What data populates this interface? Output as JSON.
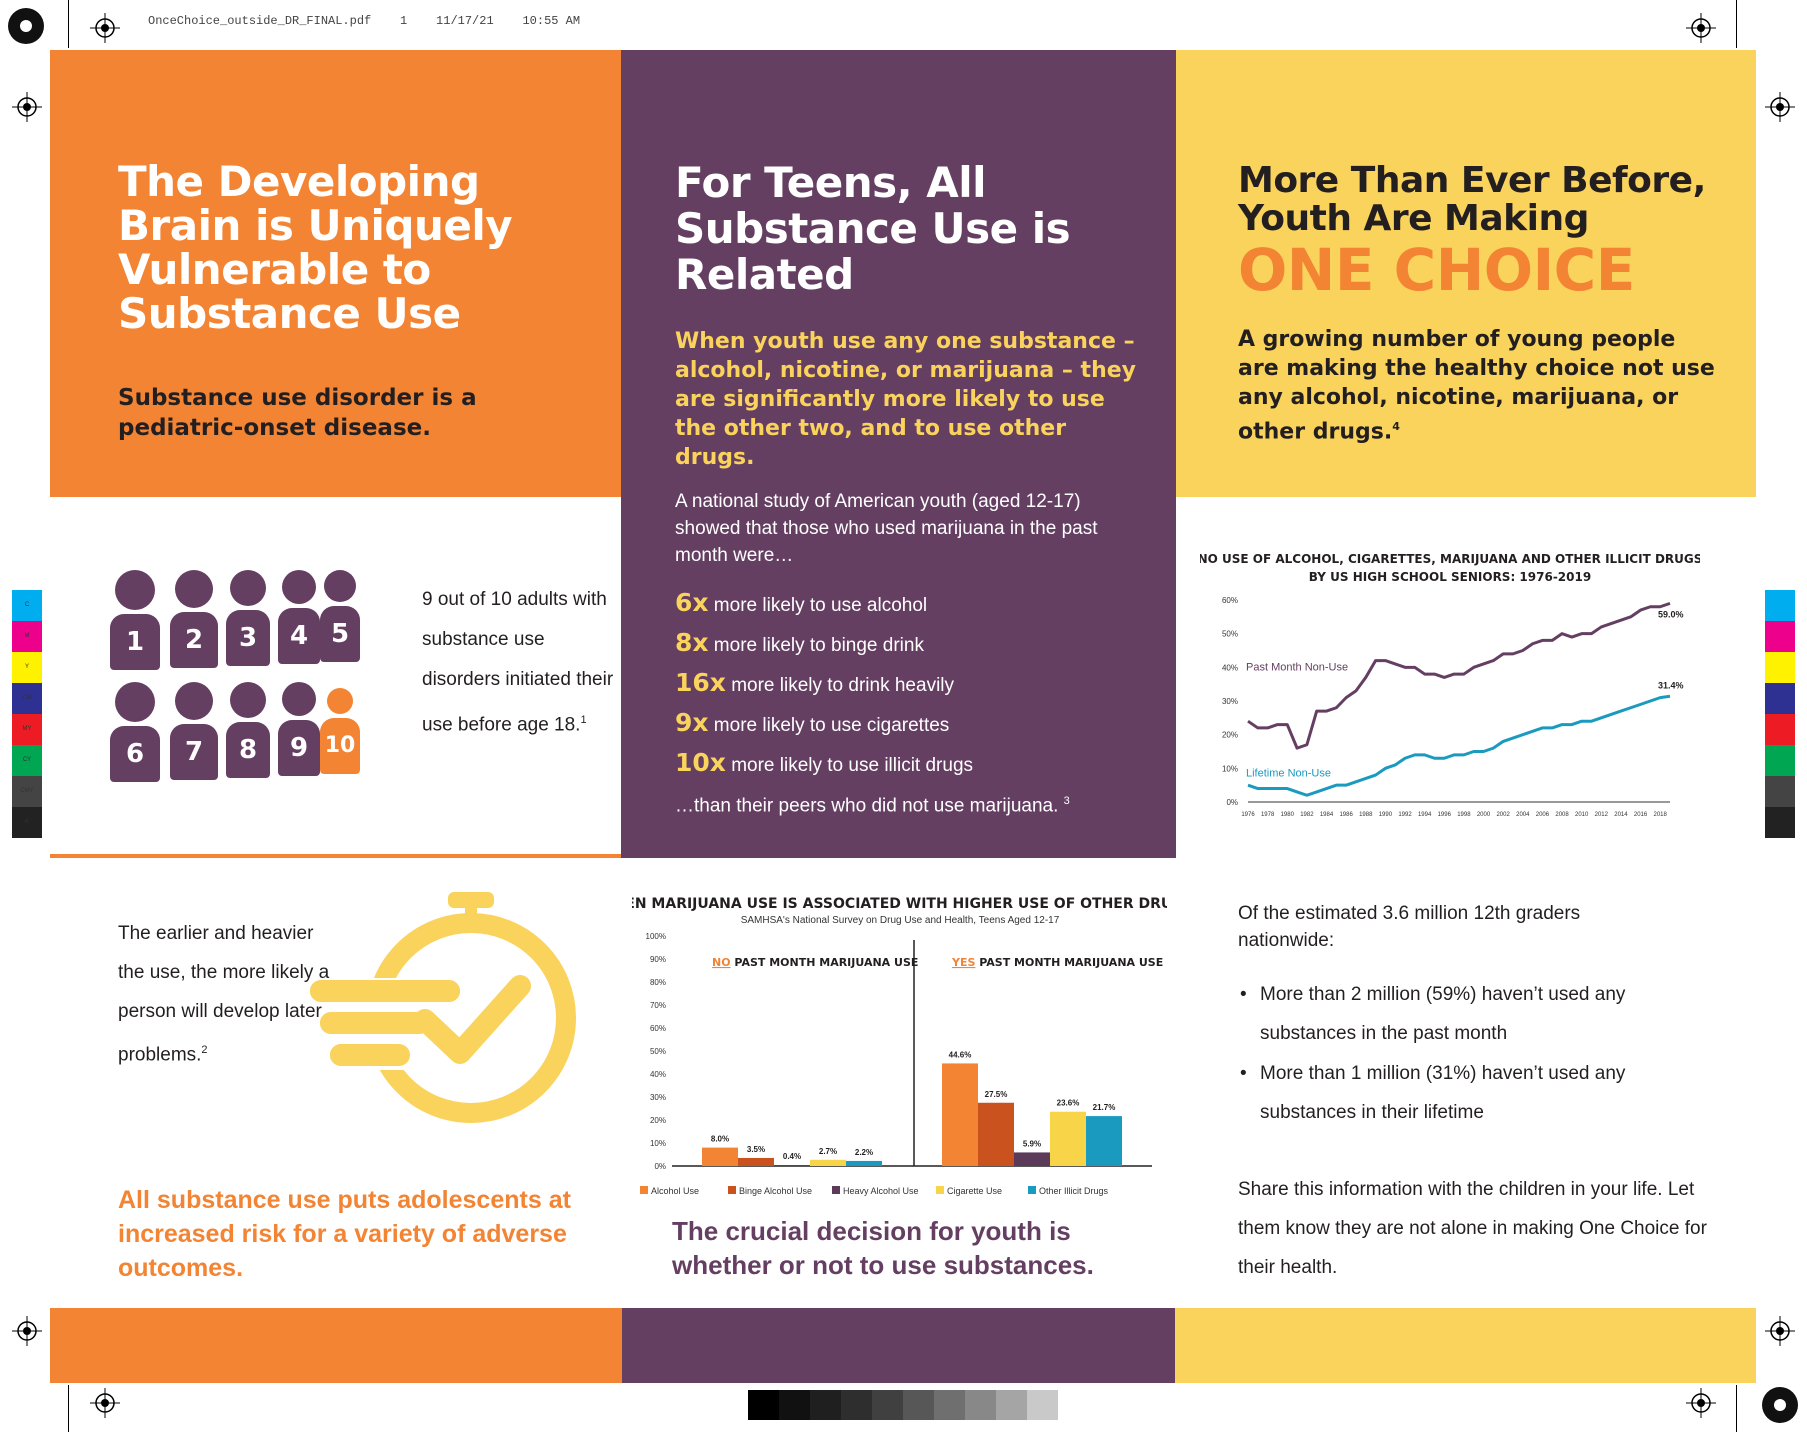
{
  "print_header": "OnceChoice_outside_DR_FINAL.pdf    1    11/17/21    10:55 AM",
  "left": {
    "title": "The Developing Brain is Uniquely Vulnerable to Substance Use",
    "subtitle": "Substance use disorder is a pediatric-onset disease.",
    "people_numbers": [
      "1",
      "2",
      "3",
      "4",
      "5",
      "6",
      "7",
      "8",
      "9",
      "10"
    ],
    "adults_text": "9 out of 10 adults with substance use disorders initiated their use before age 18.",
    "adults_sup": "1",
    "earlier_text": "The earlier and heavier the use, the more likely a person will develop later problems.",
    "earlier_sup": "2",
    "bottom_text": "All substance use puts adolescents at increased risk for a variety of adverse outcomes."
  },
  "middle": {
    "title": "For Teens, All Substance Use is Related",
    "highlight": "When youth use any one substance – alcohol, nicotine, or marijuana – they are significantly more likely to use the other two, and to use other drugs.",
    "study_intro": "A national study of American youth (aged 12-17) showed that those who used marijuana in the past month were…",
    "stats": [
      {
        "mult": "6x",
        "text": " more likely to use alcohol"
      },
      {
        "mult": "8x",
        "text": " more likely to binge drink"
      },
      {
        "mult": "16x",
        "text": " more likely to drink heavily"
      },
      {
        "mult": "9x",
        "text": " more likely to use cigarettes"
      },
      {
        "mult": "10x",
        "text": " more likely to use illicit drugs"
      }
    ],
    "stats_footer": "…than their peers who did not use marijuana.",
    "stats_footer_sup": "3",
    "bottom_text": "The crucial decision for youth is whether or not to use substances."
  },
  "right": {
    "title_line1": "More Than Ever Before, Youth Are Making",
    "title_line2": "ONE CHOICE",
    "subtitle": "A growing number of young people are making the healthy choice not use any alcohol, nicotine, marijuana, or other drugs.",
    "subtitle_sup": "4",
    "estimate": "Of the estimated 3.6 million 12th graders nationwide:",
    "bullets": [
      "More than 2 million (59%) haven’t used any substances in the past month",
      "More than 1 million (31%) haven’t used any substances in their lifetime"
    ],
    "share": "Share this information with the children in your life. Let them know they are not alone in making One Choice for their health."
  },
  "colors": {
    "orange": "#f28433",
    "purple": "#643f62",
    "yellow": "#f9d35c",
    "teal": "#1b9ac0",
    "dark_orange": "#c9521f",
    "bar_yellow": "#f7d448",
    "bar_purple": "#5b3a5a"
  },
  "chart_data": [
    {
      "type": "line",
      "title": "NO USE OF ALCOHOL, CIGARETTES, MARIJUANA AND OTHER ILLICIT DRUGS BY US HIGH SCHOOL SENIORS: 1976-2019",
      "ylim": [
        0,
        60
      ],
      "yticks": [
        "0%",
        "10%",
        "20%",
        "30%",
        "40%",
        "50%",
        "60%"
      ],
      "xticks": [
        "1976",
        "1978",
        "1980",
        "1982",
        "1984",
        "1986",
        "1988",
        "1990",
        "1992",
        "1994",
        "1996",
        "1998",
        "2000",
        "2002",
        "2004",
        "2006",
        "2008",
        "2010",
        "2012",
        "2014",
        "2016",
        "2018"
      ],
      "x": [
        1976,
        1977,
        1978,
        1979,
        1980,
        1981,
        1982,
        1983,
        1984,
        1985,
        1986,
        1987,
        1988,
        1989,
        1990,
        1991,
        1992,
        1993,
        1994,
        1995,
        1996,
        1997,
        1998,
        1999,
        2000,
        2001,
        2002,
        2003,
        2004,
        2005,
        2006,
        2007,
        2008,
        2009,
        2010,
        2011,
        2012,
        2013,
        2014,
        2015,
        2016,
        2017,
        2018,
        2019
      ],
      "series": [
        {
          "name": "Past Month Non-Use",
          "color": "#643f62",
          "end_label": "59.0%",
          "values": [
            24,
            22,
            22,
            23,
            23,
            16,
            17,
            27,
            27,
            28,
            31,
            33,
            37,
            42,
            42,
            41,
            40,
            40,
            38,
            38,
            37,
            38,
            38,
            40,
            41,
            42,
            44,
            44,
            45,
            47,
            48,
            48,
            50,
            49,
            50,
            50,
            52,
            53,
            54,
            55,
            57,
            58,
            58,
            59
          ]
        },
        {
          "name": "Lifetime Non-Use",
          "color": "#1b9ac0",
          "end_label": "31.4%",
          "values": [
            5,
            4,
            4,
            4,
            4,
            3,
            2,
            3,
            4,
            5,
            5,
            6,
            7,
            8,
            10,
            11,
            13,
            14,
            14,
            13,
            13,
            14,
            14,
            15,
            15,
            16,
            18,
            19,
            20,
            21,
            22,
            22,
            23,
            23,
            24,
            24,
            25,
            26,
            27,
            28,
            29,
            30,
            31,
            31.4
          ]
        }
      ]
    },
    {
      "type": "bar",
      "title": "TEEN MARIJUANA USE IS ASSOCIATED WITH HIGHER USE OF OTHER DRUGS",
      "subtitle": "SAMHSA's National Survey on Drug Use and Health, Teens Aged 12-17",
      "ylim": [
        0,
        100
      ],
      "yticks": [
        "0%",
        "10%",
        "20%",
        "30%",
        "40%",
        "50%",
        "60%",
        "70%",
        "80%",
        "90%",
        "100%"
      ],
      "groups": [
        {
          "label_prefix": "NO",
          "label_rest": " PAST MONTH MARIJUANA USE",
          "values": [
            8.0,
            3.5,
            0.4,
            2.7,
            2.2
          ],
          "labels": [
            "8.0%",
            "3.5%",
            "0.4%",
            "2.7%",
            "2.2%"
          ]
        },
        {
          "label_prefix": "YES",
          "label_rest": " PAST MONTH MARIJUANA USE",
          "values": [
            44.6,
            27.5,
            5.9,
            23.6,
            21.7
          ],
          "labels": [
            "44.6%",
            "27.5%",
            "5.9%",
            "23.6%",
            "21.7%"
          ]
        }
      ],
      "series": [
        {
          "name": "Alcohol Use",
          "color": "#f28433"
        },
        {
          "name": "Binge Alcohol Use",
          "color": "#c9521f"
        },
        {
          "name": "Heavy Alcohol Use",
          "color": "#5b3a5a"
        },
        {
          "name": "Cigarette Use",
          "color": "#f7d448"
        },
        {
          "name": "Other Illicit Drugs",
          "color": "#1b9ac0"
        }
      ]
    }
  ]
}
